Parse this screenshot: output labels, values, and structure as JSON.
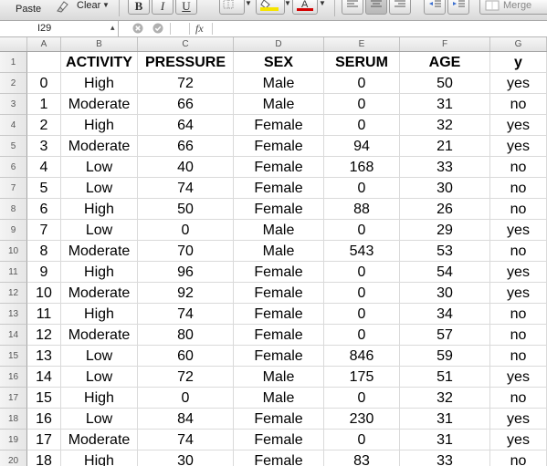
{
  "toolbar": {
    "paste_label": "Paste",
    "clear_label": "Clear",
    "bold_label": "B",
    "italic_label": "I",
    "underline_label": "U",
    "merge_label": "Merge",
    "highlight_color": "#f5e400",
    "font_color": "#d40000"
  },
  "formula_bar": {
    "name_box": "I29",
    "fx_label": "fx",
    "formula": ""
  },
  "columns": [
    "A",
    "B",
    "C",
    "D",
    "E",
    "F",
    "G"
  ],
  "row_numbers": [
    "1",
    "2",
    "3",
    "4",
    "5",
    "6",
    "7",
    "8",
    "9",
    "10",
    "11",
    "12",
    "13",
    "14",
    "15",
    "16",
    "17",
    "18",
    "19",
    "20"
  ],
  "table": {
    "headers": [
      "",
      "ACTIVITY",
      "PRESSURE",
      "SEX",
      "SERUM",
      "AGE",
      "y"
    ],
    "rows": [
      [
        "0",
        "High",
        "72",
        "Male",
        "0",
        "50",
        "yes"
      ],
      [
        "1",
        "Moderate",
        "66",
        "Male",
        "0",
        "31",
        "no"
      ],
      [
        "2",
        "High",
        "64",
        "Female",
        "0",
        "32",
        "yes"
      ],
      [
        "3",
        "Moderate",
        "66",
        "Female",
        "94",
        "21",
        "yes"
      ],
      [
        "4",
        "Low",
        "40",
        "Female",
        "168",
        "33",
        "no"
      ],
      [
        "5",
        "Low",
        "74",
        "Female",
        "0",
        "30",
        "no"
      ],
      [
        "6",
        "High",
        "50",
        "Female",
        "88",
        "26",
        "no"
      ],
      [
        "7",
        "Low",
        "0",
        "Male",
        "0",
        "29",
        "yes"
      ],
      [
        "8",
        "Moderate",
        "70",
        "Male",
        "543",
        "53",
        "no"
      ],
      [
        "9",
        "High",
        "96",
        "Female",
        "0",
        "54",
        "yes"
      ],
      [
        "10",
        "Moderate",
        "92",
        "Female",
        "0",
        "30",
        "yes"
      ],
      [
        "11",
        "High",
        "74",
        "Female",
        "0",
        "34",
        "no"
      ],
      [
        "12",
        "Moderate",
        "80",
        "Female",
        "0",
        "57",
        "no"
      ],
      [
        "13",
        "Low",
        "60",
        "Female",
        "846",
        "59",
        "no"
      ],
      [
        "14",
        "Low",
        "72",
        "Male",
        "175",
        "51",
        "yes"
      ],
      [
        "15",
        "High",
        "0",
        "Male",
        "0",
        "32",
        "no"
      ],
      [
        "16",
        "Low",
        "84",
        "Female",
        "230",
        "31",
        "yes"
      ],
      [
        "17",
        "Moderate",
        "74",
        "Female",
        "0",
        "31",
        "yes"
      ],
      [
        "18",
        "High",
        "30",
        "Female",
        "83",
        "33",
        "no"
      ]
    ]
  }
}
